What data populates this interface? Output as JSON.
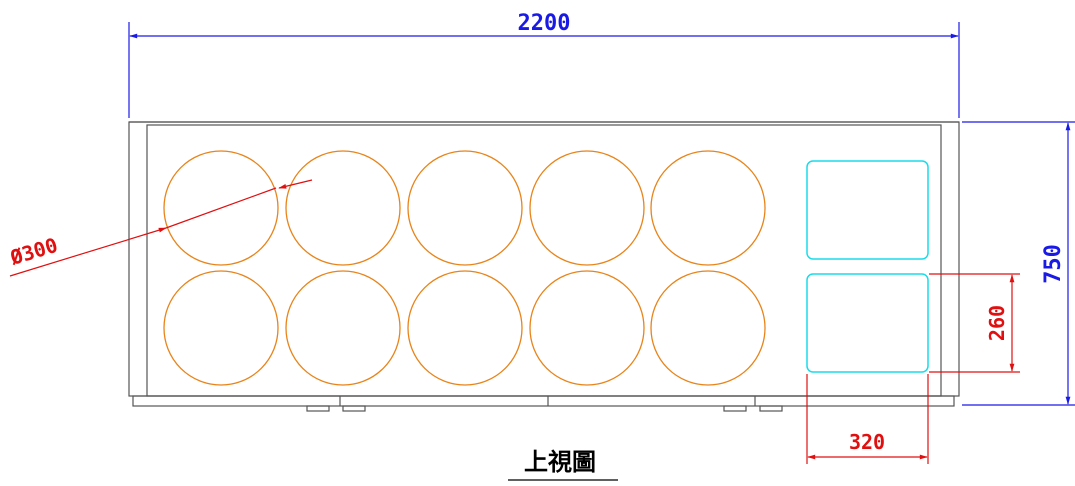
{
  "drawing": {
    "title": "上視圖",
    "colors": {
      "outline": "#555555",
      "circle": "#e8841a",
      "box": "#18dcea",
      "overall_dim": "#1a1ae6",
      "detail_dim": "#e01010"
    },
    "dimensions": {
      "overall_width": "2200",
      "overall_depth": "750",
      "circle_diameter": "Ø300",
      "box_depth": "260",
      "box_width": "320"
    },
    "circles": {
      "rows": 2,
      "columns": 5,
      "count": 10
    },
    "boxes": {
      "count": 2
    }
  }
}
